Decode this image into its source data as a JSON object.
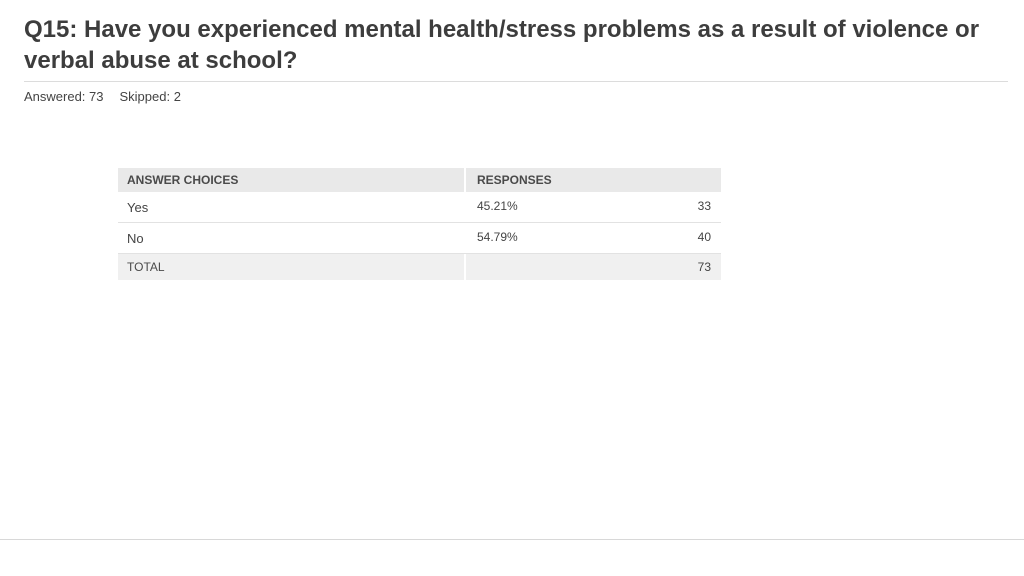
{
  "question": {
    "title": "Q15: Have you experienced mental health/stress problems as a result of violence or verbal abuse at school?",
    "answered_label": "Answered: 73",
    "skipped_label": "Skipped: 2"
  },
  "table": {
    "header_choices": "ANSWER CHOICES",
    "header_responses": "RESPONSES",
    "rows": [
      {
        "choice": "Yes",
        "percent": "45.21%",
        "count": "33"
      },
      {
        "choice": "No",
        "percent": "54.79%",
        "count": "40"
      }
    ],
    "total_label": "TOTAL",
    "total_count": "73"
  },
  "chart_data": {
    "type": "table",
    "columns": [
      "ANSWER CHOICES",
      "RESPONSES",
      ""
    ],
    "rows": [
      [
        "Yes",
        "45.21%",
        33
      ],
      [
        "No",
        "54.79%",
        40
      ]
    ],
    "total": 73,
    "answered": 73,
    "skipped": 2
  }
}
